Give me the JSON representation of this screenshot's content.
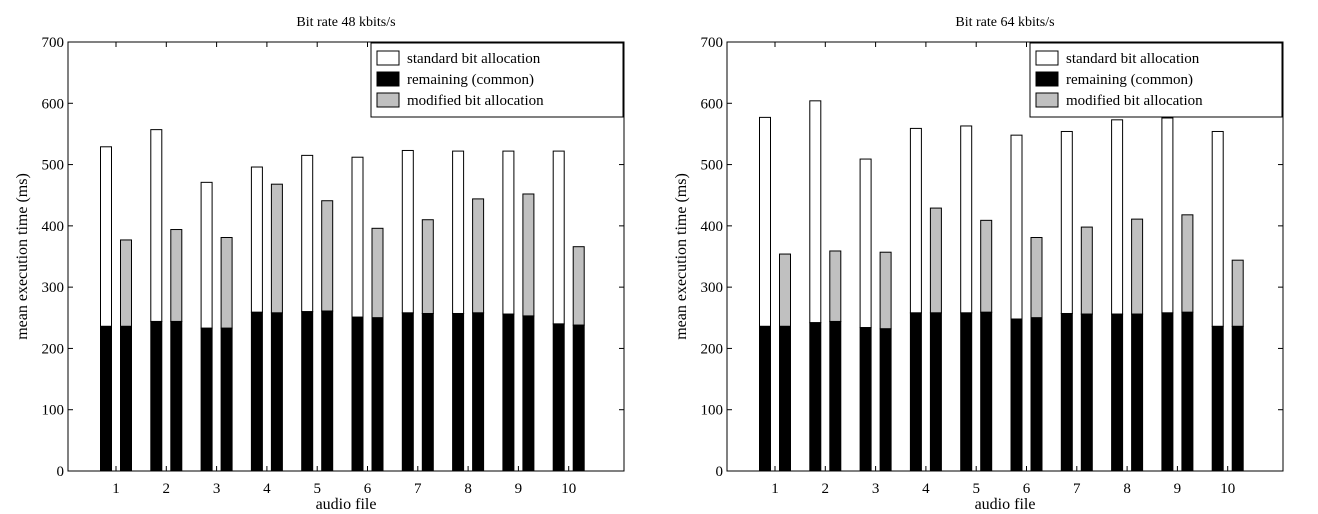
{
  "chart_data": [
    {
      "type": "bar",
      "title": "Bit rate 48 kbits/s",
      "xlabel": "audio file",
      "ylabel": "mean execution time (ms)",
      "ylim": [
        0,
        700
      ],
      "yticks": [
        0,
        100,
        200,
        300,
        400,
        500,
        600,
        700
      ],
      "categories": [
        "1",
        "2",
        "3",
        "4",
        "5",
        "6",
        "7",
        "8",
        "9",
        "10"
      ],
      "legend": {
        "position": "top-right",
        "entries": [
          "standard bit allocation",
          "remaining (common)",
          "modified bit allocation"
        ]
      },
      "colors": {
        "standard": "#ffffff",
        "common": "#000000",
        "modified": "#c0c0c0",
        "outline": "#000000"
      },
      "series": [
        {
          "name": "standard bit allocation",
          "values": [
            529,
            557,
            471,
            496,
            515,
            512,
            523,
            522,
            522,
            522
          ]
        },
        {
          "name": "remaining (common)",
          "values": [
            236,
            244,
            233,
            259,
            260,
            251,
            258,
            257,
            256,
            240
          ]
        },
        {
          "name": "modified bit allocation",
          "values": [
            377,
            394,
            381,
            468,
            441,
            396,
            410,
            444,
            452,
            366
          ]
        },
        {
          "name": "remaining (common)",
          "values": [
            236,
            244,
            233,
            258,
            261,
            250,
            257,
            258,
            253,
            238
          ]
        }
      ]
    },
    {
      "type": "bar",
      "title": "Bit rate 64 kbits/s",
      "xlabel": "audio file",
      "ylabel": "mean execution time (ms)",
      "ylim": [
        0,
        700
      ],
      "yticks": [
        0,
        100,
        200,
        300,
        400,
        500,
        600,
        700
      ],
      "categories": [
        "1",
        "2",
        "3",
        "4",
        "5",
        "6",
        "7",
        "8",
        "9",
        "10"
      ],
      "legend": {
        "position": "top-right",
        "entries": [
          "standard bit allocation",
          "remaining (common)",
          "modified bit allocation"
        ]
      },
      "colors": {
        "standard": "#ffffff",
        "common": "#000000",
        "modified": "#c0c0c0",
        "outline": "#000000"
      },
      "series": [
        {
          "name": "standard bit allocation",
          "values": [
            577,
            604,
            509,
            559,
            563,
            548,
            554,
            573,
            576,
            554
          ]
        },
        {
          "name": "remaining (common)",
          "values": [
            236,
            242,
            234,
            258,
            258,
            248,
            257,
            256,
            258,
            236
          ]
        },
        {
          "name": "modified bit allocation",
          "values": [
            354,
            359,
            357,
            429,
            409,
            381,
            398,
            411,
            418,
            344
          ]
        },
        {
          "name": "remaining (common)",
          "values": [
            236,
            244,
            232,
            258,
            259,
            250,
            256,
            256,
            259,
            236
          ]
        }
      ]
    }
  ]
}
